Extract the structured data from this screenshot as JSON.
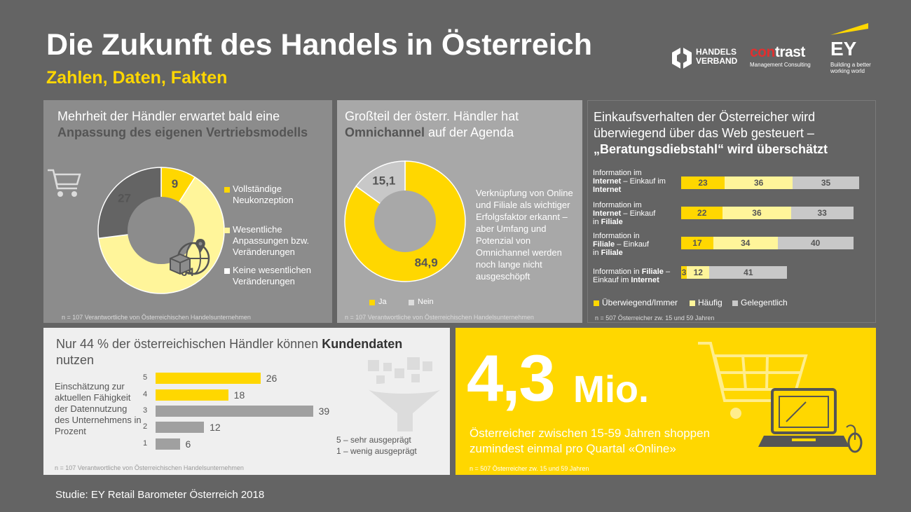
{
  "header": {
    "title": "Die Zukunft des Handels in Österreich",
    "subtitle": "Zahlen, Daten, Fakten"
  },
  "logos": {
    "handelsverband": "HANDELS VERBAND",
    "contrast_con": "con",
    "contrast_trast": "trast",
    "contrast_sub": "Management Consulting",
    "ey": "EY",
    "ey_sub": "Building a better working world"
  },
  "colors": {
    "yellow": "#ffd700",
    "light_yellow": "#fff59a",
    "gray": "#a0a0a0",
    "dark_gray": "#646464"
  },
  "panel1": {
    "title_plain": "Mehrheit der Händler erwartet bald eine",
    "title_bold": "Anpassung des eigenen Vertriebsmodells",
    "legend": [
      "Vollständige Neukonzeption",
      "Wesentliche Anpassungen bzw. Veränderungen",
      "Keine wesentlichen Veränderungen"
    ],
    "footnote": "n = 107 Verantwortliche von Österreichischen Handelsunternehmen",
    "icons": [
      "shopping-cart-icon",
      "globe-location-icon",
      "package-icon"
    ]
  },
  "panel2": {
    "title_plain1": "Großteil der österr. Händler hat",
    "title_bold": "Omnichannel",
    "title_plain2": " auf der Agenda",
    "text": "Verknüpfung von Online und Filiale als wichtiger Erfolgsfaktor erkannt – aber Umfang und Potenzial von Omnichannel werden noch lange nicht ausgeschöpft",
    "legend": [
      "Ja",
      "Nein"
    ],
    "footnote": "n = 107 Verantwortliche von Österreichischen Handelsunternehmen"
  },
  "panel3": {
    "title_line1": "Einkaufsverhalten der Österreicher wird",
    "title_line2": "überwiegend über das Web gesteuert –",
    "title_bold": "„Beratungsdiebstahl“ wird überschätzt",
    "legend": [
      "Überwiegend/Immer",
      "Häufig",
      "Gelegentlich"
    ],
    "footnote": "n = 507 Österreicher zw. 15 und 59 Jahren",
    "row_labels": [
      {
        "a": "Information im",
        "b": "Internet",
        "c": " – Einkauf im",
        "d": "Internet"
      },
      {
        "a": "Information im",
        "b": "Internet",
        "c": " – Einkauf",
        "d": "in ",
        "e": "Filiale"
      },
      {
        "a": "Information in",
        "b": "Filiale",
        "c": " – Einkauf",
        "d": "in ",
        "e": "Filiale"
      },
      {
        "a": "Information in ",
        "b": "Filiale",
        "c": " –",
        "d": "Einkauf im ",
        "e": "Internet"
      }
    ]
  },
  "panel4": {
    "title_plain": "Nur 44 % der österreichischen Händler können ",
    "title_bold": "Kundendaten",
    "title_line2": "nutzen",
    "side_label": "Einschätzung zur aktuellen Fähigkeit der Datennutzung des Unternehmens in Prozent",
    "scale_note1": "5 – sehr ausgeprägt",
    "scale_note2": "1 – wenig ausgeprägt",
    "footnote": "n = 107 Verantwortliche von Österreichischen Handelsunternehmen",
    "icons": [
      "data-funnel-icon"
    ]
  },
  "panel5": {
    "big_number": "4,3",
    "big_unit": "Mio.",
    "description": "Österreicher zwischen 15-59 Jahren shoppen zumindest einmal pro Quartal «Online»",
    "footnote": "n = 507 Österreicher zw. 15 und 59 Jahren",
    "icons": [
      "shopping-cart-icon",
      "laptop-icon",
      "mouse-icon"
    ]
  },
  "study": "Studie: EY Retail Barometer Österreich 2018",
  "chart_data": [
    {
      "type": "pie",
      "donut": true,
      "labels": [
        "Vollständige Neukonzeption",
        "Wesentliche Anpassungen bzw. Veränderungen",
        "Keine wesentlichen Veränderungen"
      ],
      "values": [
        9,
        64,
        27
      ],
      "colors": [
        "#ffd700",
        "#fff59a",
        "#646464"
      ]
    },
    {
      "type": "pie",
      "donut": true,
      "labels": [
        "Ja",
        "Nein"
      ],
      "values": [
        84.9,
        15.1
      ],
      "colors": [
        "#ffd700",
        "#c8c8c8"
      ]
    },
    {
      "type": "bar",
      "orientation": "horizontal",
      "stacked": true,
      "categories": [
        "Information im Internet – Einkauf im Internet",
        "Information im Internet – Einkauf in Filiale",
        "Information in Filiale – Einkauf in Filiale",
        "Information in Filiale – Einkauf im Internet"
      ],
      "series": [
        {
          "name": "Überwiegend/Immer",
          "values": [
            23,
            22,
            17,
            3
          ],
          "color": "#ffd700"
        },
        {
          "name": "Häufig",
          "values": [
            36,
            36,
            34,
            12
          ],
          "color": "#fff59a"
        },
        {
          "name": "Gelegentlich",
          "values": [
            35,
            33,
            40,
            41
          ],
          "color": "#c8c8c8"
        }
      ]
    },
    {
      "type": "bar",
      "orientation": "horizontal",
      "categories": [
        "5",
        "4",
        "3",
        "2",
        "1"
      ],
      "values": [
        26,
        18,
        39,
        12,
        6
      ],
      "colors": [
        "#ffd700",
        "#ffd700",
        "#a0a0a0",
        "#a0a0a0",
        "#a0a0a0"
      ]
    }
  ]
}
